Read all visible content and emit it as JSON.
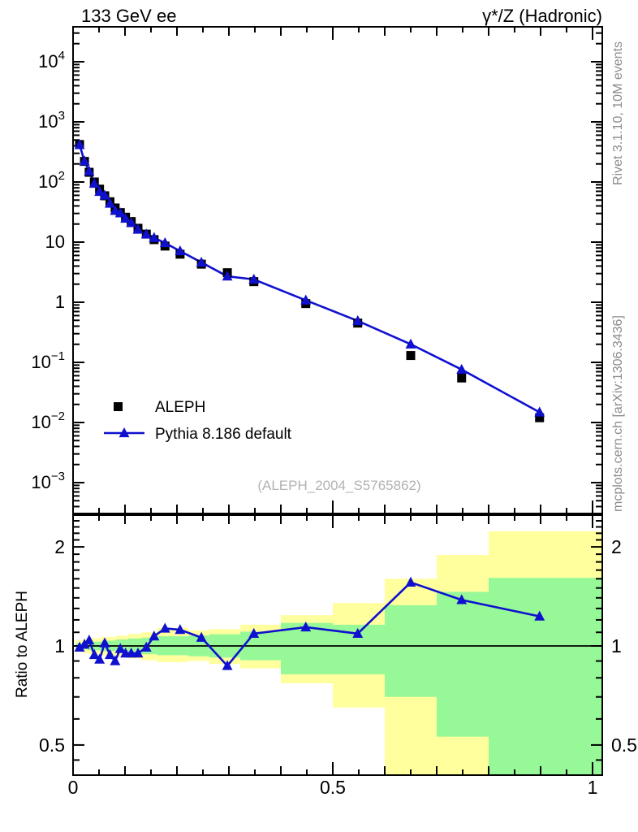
{
  "header": {
    "left_title": "133 GeV ee",
    "right_title": "γ*/Z (Hadronic)"
  },
  "side_notes": {
    "top_rotated": "Rivet 3.1.10,  10M events",
    "bottom_rotated": "mcplots.cern.ch [arXiv:1306.3436]"
  },
  "watermark": "(ALEPH_2004_S5765862)",
  "legend": {
    "entries": [
      {
        "label": "ALEPH",
        "marker": "black-square"
      },
      {
        "label": "Pythia 8.186 default",
        "marker": "blue-triangle-line"
      }
    ]
  },
  "colors": {
    "mc_blue": "#1010cf",
    "band_yellow": "#ffff9e",
    "band_green": "#97f897",
    "frame": "#000000",
    "note_gray": "#8c8c8c",
    "watermark_gray": "#b2b2b2",
    "data_black": "#000000"
  },
  "chart_data": [
    {
      "type": "line",
      "panel": "main",
      "yscale": "log",
      "xlim": [
        0,
        1.019
      ],
      "ylim": [
        0.00031,
        38000
      ],
      "grid": false,
      "legend_position": "left-middle",
      "y_tick_labels": [
        {
          "value": 10000,
          "base": "10",
          "exp": "4"
        },
        {
          "value": 1000,
          "base": "10",
          "exp": "3"
        },
        {
          "value": 100,
          "base": "10",
          "exp": "2"
        },
        {
          "value": 10,
          "base": "10",
          "exp": ""
        },
        {
          "value": 1,
          "base": "1",
          "exp": ""
        },
        {
          "value": 0.1,
          "base": "10",
          "exp": "−1"
        },
        {
          "value": 0.01,
          "base": "10",
          "exp": "−2"
        },
        {
          "value": 0.001,
          "base": "10",
          "exp": "−3"
        }
      ],
      "x": [
        0.0125,
        0.022,
        0.031,
        0.041,
        0.051,
        0.061,
        0.071,
        0.081,
        0.091,
        0.101,
        0.112,
        0.125,
        0.141,
        0.156,
        0.177,
        0.206,
        0.247,
        0.297,
        0.348,
        0.448,
        0.548,
        0.65,
        0.748,
        0.898
      ],
      "series": [
        {
          "name": "ALEPH",
          "style": "points",
          "marker": "square",
          "color": "#000000",
          "values": [
            420,
            220,
            145,
            100,
            76,
            59,
            47,
            37,
            31,
            26,
            22,
            17,
            13.6,
            11,
            8.6,
            6.3,
            4.3,
            3.1,
            2.2,
            0.95,
            0.45,
            0.13,
            0.055,
            0.012
          ]
        },
        {
          "name": "Pythia 8.186 default",
          "style": "line+points",
          "marker": "triangle",
          "color": "#1010cf",
          "values": [
            416,
            222,
            151,
            94,
            69,
            60,
            44,
            33.3,
            30.4,
            24.7,
            20.9,
            16.2,
            13.5,
            11.8,
            9.7,
            7.1,
            4.6,
            2.7,
            2.4,
            1.08,
            0.49,
            0.2,
            0.076,
            0.0148
          ]
        }
      ]
    },
    {
      "type": "ratio",
      "panel": "ratio",
      "ylabel": "Ratio to ALEPH",
      "yscale": "log",
      "ylim": [
        0.405,
        2.5
      ],
      "reference_line": 1.0,
      "y_tick_labels": [
        {
          "value": 2,
          "text": "2"
        },
        {
          "value": 1,
          "text": "1"
        },
        {
          "value": 0.5,
          "text": "0.5"
        }
      ],
      "x_tick_labels": [
        {
          "value": 0,
          "text": "0"
        },
        {
          "value": 0.5,
          "text": "0.5"
        },
        {
          "value": 1,
          "text": "1"
        }
      ],
      "x": [
        0.0125,
        0.022,
        0.031,
        0.041,
        0.051,
        0.061,
        0.071,
        0.081,
        0.091,
        0.101,
        0.112,
        0.125,
        0.141,
        0.156,
        0.177,
        0.206,
        0.247,
        0.297,
        0.348,
        0.448,
        0.548,
        0.65,
        0.748,
        0.898
      ],
      "ratio": [
        0.99,
        1.01,
        1.04,
        0.94,
        0.91,
        1.02,
        0.94,
        0.9,
        0.98,
        0.95,
        0.95,
        0.95,
        0.99,
        1.07,
        1.13,
        1.12,
        1.06,
        0.87,
        1.09,
        1.14,
        1.09,
        1.56,
        1.38,
        1.23
      ],
      "bands": {
        "yellow": [
          [
            0.005,
            0.018,
            0.96,
            1.04
          ],
          [
            0.018,
            0.03,
            0.952,
            1.048
          ],
          [
            0.03,
            0.056,
            0.944,
            1.056
          ],
          [
            0.056,
            0.082,
            0.936,
            1.064
          ],
          [
            0.082,
            0.106,
            0.925,
            1.075
          ],
          [
            0.106,
            0.132,
            0.916,
            1.088
          ],
          [
            0.132,
            0.162,
            0.905,
            1.1
          ],
          [
            0.162,
            0.222,
            0.893,
            1.135
          ],
          [
            0.222,
            0.262,
            0.9,
            1.115
          ],
          [
            0.262,
            0.322,
            0.882,
            1.125
          ],
          [
            0.322,
            0.4,
            0.855,
            1.16
          ],
          [
            0.4,
            0.5,
            0.77,
            1.24
          ],
          [
            0.5,
            0.6,
            0.65,
            1.35
          ],
          [
            0.6,
            0.7,
            0.35,
            1.6
          ],
          [
            0.7,
            0.8,
            0.35,
            1.89
          ],
          [
            0.8,
            1.019,
            0.35,
            2.23
          ]
        ],
        "green": [
          [
            0.005,
            0.018,
            0.98,
            1.02
          ],
          [
            0.018,
            0.03,
            0.976,
            1.024
          ],
          [
            0.03,
            0.056,
            0.97,
            1.03
          ],
          [
            0.056,
            0.082,
            0.964,
            1.038
          ],
          [
            0.082,
            0.106,
            0.957,
            1.046
          ],
          [
            0.106,
            0.132,
            0.95,
            1.053
          ],
          [
            0.132,
            0.162,
            0.944,
            1.06
          ],
          [
            0.162,
            0.222,
            0.937,
            1.07
          ],
          [
            0.222,
            0.262,
            0.93,
            1.076
          ],
          [
            0.262,
            0.322,
            0.922,
            1.085
          ],
          [
            0.322,
            0.4,
            0.905,
            1.105
          ],
          [
            0.4,
            0.5,
            0.82,
            1.175
          ],
          [
            0.5,
            0.6,
            0.82,
            1.16
          ],
          [
            0.6,
            0.7,
            0.7,
            1.33
          ],
          [
            0.7,
            0.8,
            0.53,
            1.46
          ],
          [
            0.8,
            1.019,
            0.35,
            1.61
          ]
        ]
      }
    }
  ]
}
